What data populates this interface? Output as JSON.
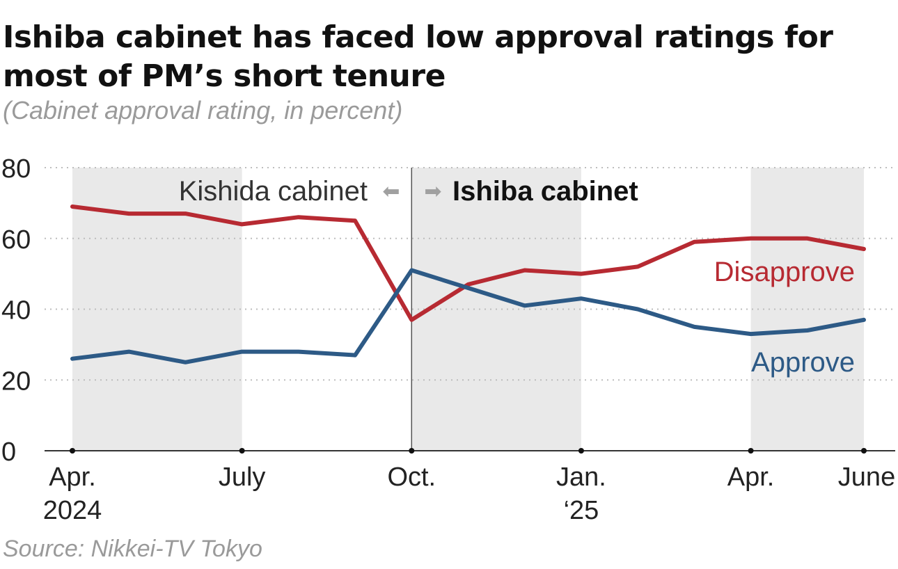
{
  "title_line1": "Ishiba cabinet has faced low approval ratings for",
  "title_line2": "most of PM’s short tenure",
  "subtitle": "(Cabinet approval rating, in percent)",
  "source": "Source: Nikkei-TV Tokyo",
  "annotations": {
    "kishida": "Kishida cabinet",
    "ishiba": "Ishiba cabinet",
    "arrow_left": "⬅",
    "arrow_right": "➡"
  },
  "colors": {
    "disapprove": "#b72a32",
    "approve": "#2d5a86",
    "shade": "#e9e9e9",
    "grid": "#bdbdbd",
    "axis": "#333333",
    "arrow": "#a0a0a0"
  },
  "chart_data": {
    "type": "line",
    "title": "Ishiba cabinet has faced low approval ratings for most of PM’s short tenure",
    "subtitle": "(Cabinet approval rating, in percent)",
    "ylim": [
      0,
      80
    ],
    "yticks": [
      0,
      20,
      40,
      60,
      80
    ],
    "grid": true,
    "x": [
      "2024-04",
      "2024-05",
      "2024-06",
      "2024-07",
      "2024-08",
      "2024-09",
      "2024-10",
      "2024-11",
      "2024-12",
      "2025-01",
      "2025-02",
      "2025-03",
      "2025-04",
      "2025-05",
      "2025-06"
    ],
    "xtick_labels": [
      {
        "month": "2024-04",
        "line1": "Apr.",
        "line2": "2024"
      },
      {
        "month": "2024-07",
        "line1": "July",
        "line2": ""
      },
      {
        "month": "2024-10",
        "line1": "Oct.",
        "line2": ""
      },
      {
        "month": "2025-01",
        "line1": "Jan.",
        "line2": "‘25"
      },
      {
        "month": "2025-04",
        "line1": "Apr.",
        "line2": ""
      },
      {
        "month": "2025-06",
        "line1": "June",
        "line2": ""
      }
    ],
    "shaded_quarters": [
      [
        "2024-04",
        "2024-07"
      ],
      [
        "2024-10",
        "2025-01"
      ],
      [
        "2025-04",
        "2025-06"
      ]
    ],
    "divider_at": "2024-10",
    "series": [
      {
        "name": "Disapprove",
        "values": [
          69,
          67,
          67,
          64,
          66,
          65,
          37,
          47,
          51,
          50,
          52,
          59,
          60,
          60,
          57
        ]
      },
      {
        "name": "Approve",
        "values": [
          26,
          28,
          25,
          28,
          28,
          27,
          51,
          46,
          41,
          43,
          40,
          35,
          33,
          34,
          37
        ]
      }
    ]
  }
}
